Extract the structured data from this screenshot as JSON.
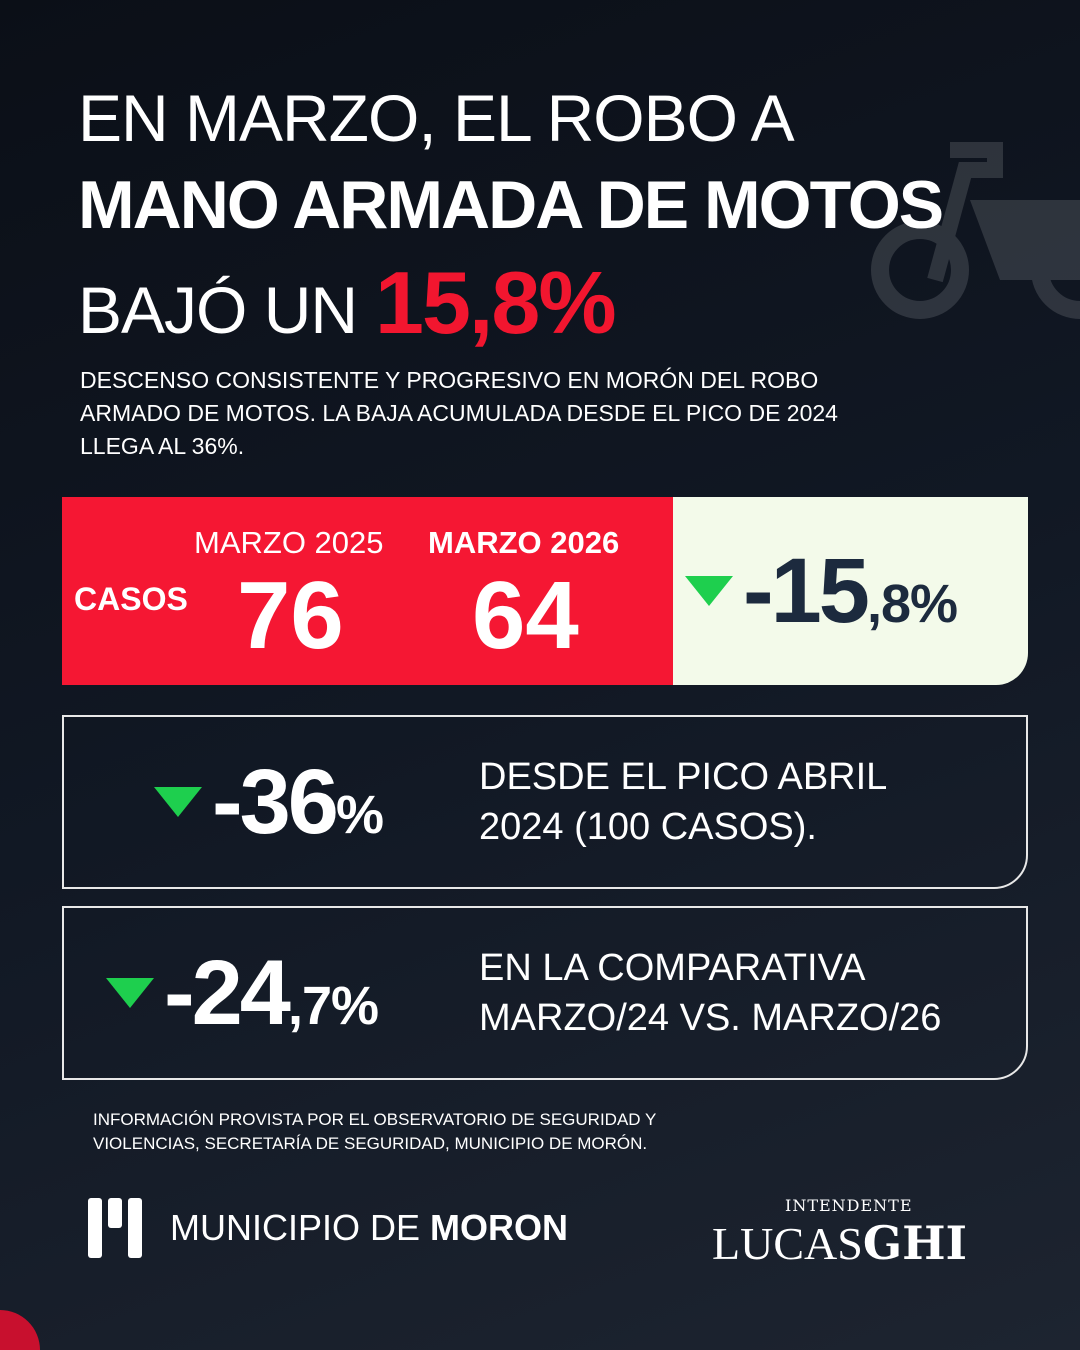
{
  "headline": {
    "line1": "EN MARZO, EL ROBO A",
    "line2": "MANO ARMADA DE MOTOS",
    "line3": "BAJÓ UN",
    "line3_highlight": "15,8%"
  },
  "subtitle": "DESCENSO CONSISTENTE Y PROGRESIVO EN MORÓN DEL ROBO ARMADO DE MOTOS. LA BAJA ACUMULADA DESDE EL PICO DE 2024 LLEGA AL 36%.",
  "main_stat": {
    "row_label": "CASOS",
    "period1": "MARZO 2025",
    "value1": "76",
    "period2": "MARZO 2026",
    "value2": "64",
    "change_int": "-15",
    "change_dec": ",8%"
  },
  "stats": [
    {
      "value_int": "-36",
      "value_dec": "%",
      "text1": "DESDE EL PICO ABRIL",
      "text2": "2024 (100 CASOS)."
    },
    {
      "value_int": "-24",
      "value_dec": ",7%",
      "text1": "EN LA COMPARATIVA",
      "text2": "MARZO/24 VS. MARZO/26"
    }
  ],
  "source": "INFORMACIÓN PROVISTA POR EL OBSERVATORIO DE SEGURIDAD Y VIOLENCIAS, SECRETARÍA DE SEGURIDAD, MUNICIPIO DE MORÓN.",
  "footer": {
    "municipio_light": "MUNICIPIO DE ",
    "municipio_bold": "MORON",
    "intendente": "INTENDENTE",
    "name_light": "LUCAS",
    "name_bold": "GHI"
  },
  "colors": {
    "red": "#f51733",
    "green": "#1ecf4e",
    "navy": "#1c2a3e",
    "cream": "#f3faea"
  }
}
